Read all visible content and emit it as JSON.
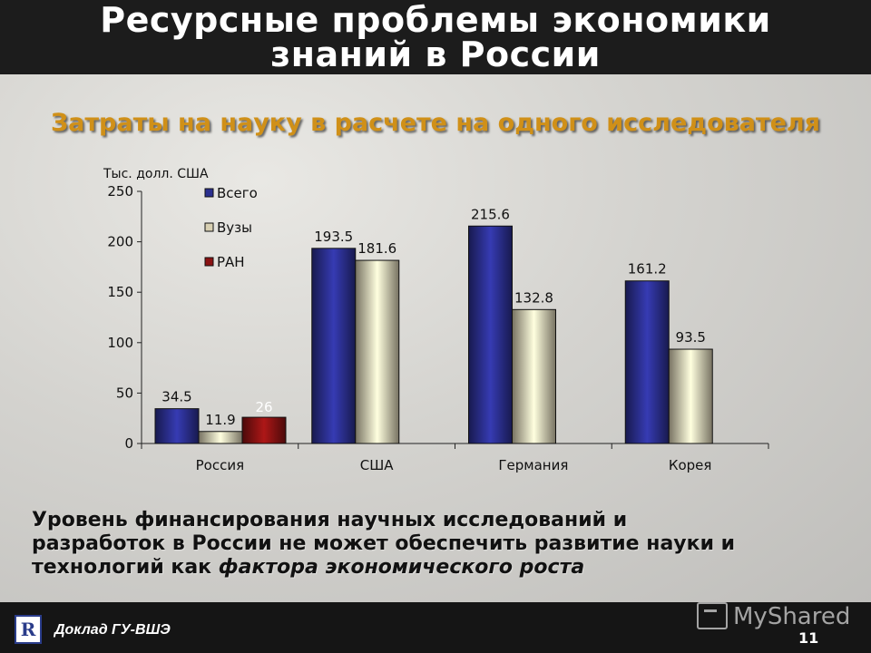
{
  "title": {
    "line1": "Ресурсные проблемы экономики",
    "line2": "знаний в России"
  },
  "subtitle": "Затраты на науку в расчете на одного исследователя",
  "chart_data": {
    "type": "bar",
    "title": "",
    "ylabel": "Тыс. долл. США",
    "xlabel": "",
    "ylim": [
      0,
      250
    ],
    "yticks": [
      0,
      50,
      100,
      150,
      200,
      250
    ],
    "grid": false,
    "legend_position": "top-left",
    "categories": [
      "Россия",
      "США",
      "Германия",
      "Корея"
    ],
    "series": [
      {
        "name": "Всего",
        "color": "#2b2f8f",
        "values": [
          34.5,
          193.5,
          215.6,
          161.2
        ],
        "labels": [
          "34.5",
          "193.5",
          "215.6",
          "161.2"
        ]
      },
      {
        "name": "Вузы",
        "color": "#d8d0b2",
        "values": [
          11.9,
          181.6,
          132.8,
          93.5
        ],
        "labels": [
          "11.9",
          "181.6",
          "132.8",
          "93.5"
        ]
      },
      {
        "name": "РАН",
        "color": "#8a1212",
        "values": [
          26,
          null,
          null,
          null
        ],
        "labels": [
          "26",
          null,
          null,
          null
        ]
      }
    ]
  },
  "statement": {
    "line1": "Уровень финансирования научных исследований и",
    "line2": "разработок в России не может обеспечить развитие науки и",
    "line3_prefix": "технологий как ",
    "line3_emphasis": "фактора экономического роста"
  },
  "footer": {
    "logo": "R",
    "text": "Доклад ГУ-ВШЭ",
    "page": "11",
    "watermark": "MyShared"
  }
}
